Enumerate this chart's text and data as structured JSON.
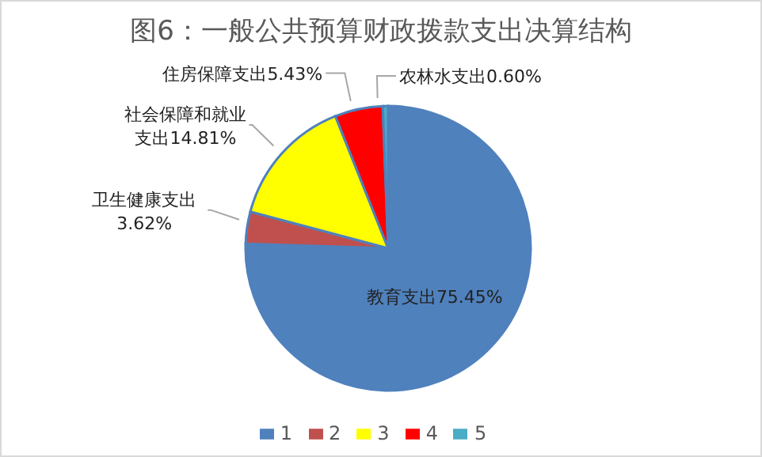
{
  "chart_data": {
    "type": "pie",
    "title": "图6：一般公共预算财政拨款支出决算结构",
    "categories": [
      "1",
      "2",
      "3",
      "4",
      "5"
    ],
    "values": [
      75.45,
      3.62,
      14.81,
      5.43,
      0.6
    ],
    "colors": [
      "#4f81bd",
      "#c0504d",
      "#ffff00",
      "#ff0000",
      "#4bacc6"
    ],
    "value_labels": [
      "教育支出75.45%",
      "卫生健康支出3.62%",
      "社会保障和就业支出14.81%",
      "住房保障支出5.43%",
      "农林水支出0.60%"
    ],
    "legend": "bottom"
  }
}
